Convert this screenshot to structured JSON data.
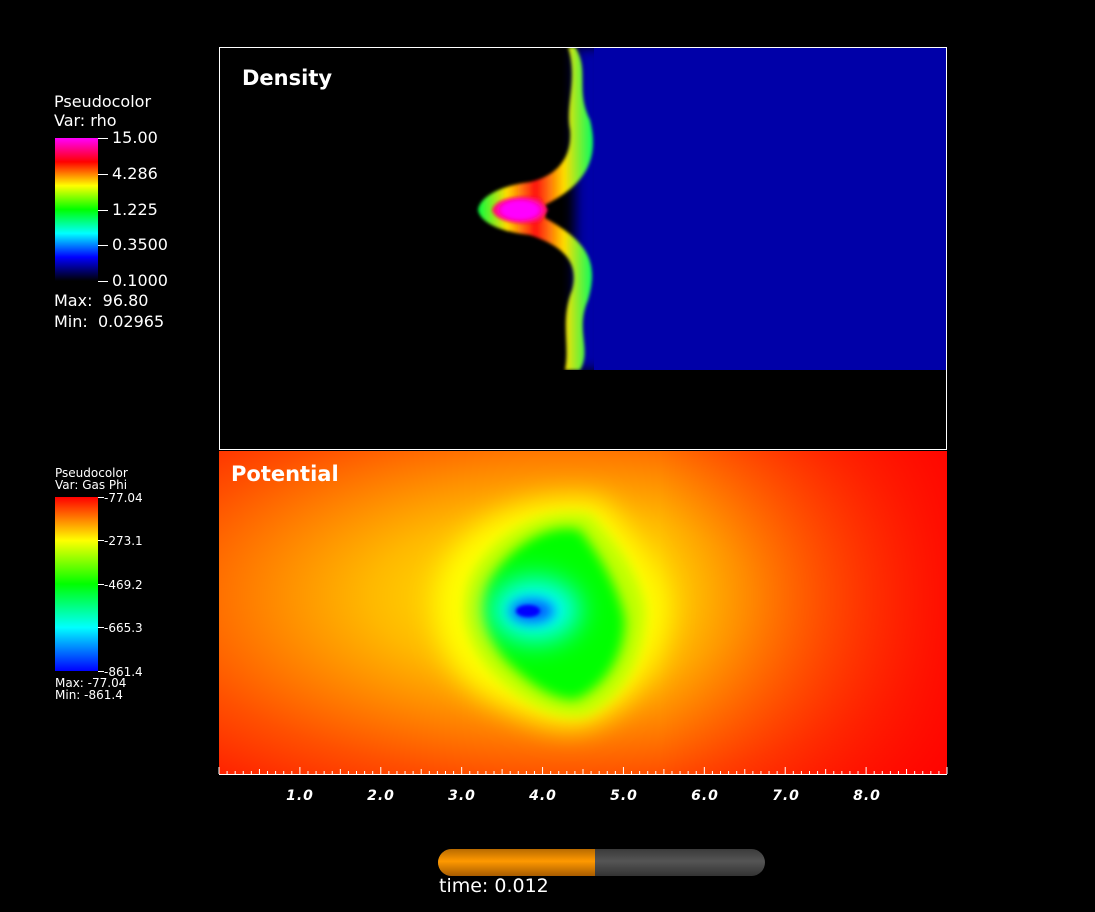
{
  "chart_data": [
    {
      "type": "heatmap",
      "title": "Density",
      "legend": {
        "line1": "Pseudocolor",
        "line2": "Var: rho",
        "ticks": [
          "15.00",
          "4.286",
          "1.225",
          "0.3500",
          "0.1000"
        ],
        "max_label": "Max:  96.80",
        "min_label": "Min:  0.02965",
        "colors": [
          "#ff00ff",
          "#ff0000",
          "#ffff00",
          "#00ff00",
          "#00ffff",
          "#0000ff",
          "#000000"
        ]
      }
    },
    {
      "type": "heatmap",
      "title": "Potential",
      "legend": {
        "line1": "Pseudocolor",
        "line2": "Var: Gas Phi",
        "ticks": [
          "-77.04",
          "-273.1",
          "-469.2",
          "-665.3",
          "-861.4"
        ],
        "max_label": "Max: -77.04",
        "min_label": "Min: -861.4",
        "colors": [
          "#ff0000",
          "#ffff00",
          "#00ff00",
          "#00ffff",
          "#0000ff"
        ]
      }
    }
  ],
  "x_axis": {
    "ticks": [
      "1.0",
      "2.0",
      "3.0",
      "4.0",
      "5.0",
      "6.0",
      "7.0",
      "8.0"
    ],
    "xlim": [
      0,
      9
    ]
  },
  "time_slider": {
    "label": "time: 0.012",
    "fraction": 0.48,
    "fill_color": "#ff9900",
    "track_color": "#555555"
  }
}
